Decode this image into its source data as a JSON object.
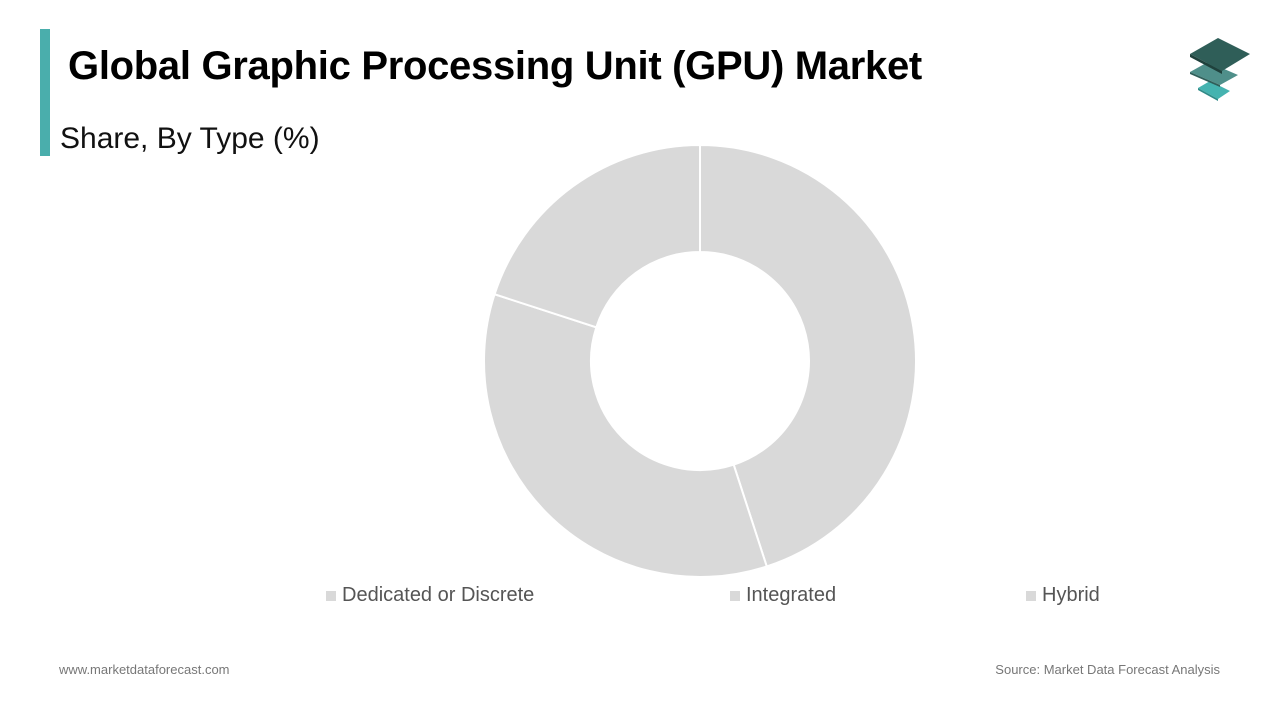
{
  "header": {
    "title": "Global Graphic Processing Unit (GPU) Market",
    "subtitle": "Share, By Type (%)",
    "accent_color": "#4aaeac",
    "logo_icon": "stacked-layers-icon"
  },
  "footer": {
    "website": "www.marketdataforecast.com",
    "source": "Source: Market Data Forecast Analysis"
  },
  "chart_data": {
    "type": "pie",
    "variant": "donut",
    "title": "Global Graphic Processing Unit (GPU) Market",
    "subtitle": "Share, By Type (%)",
    "categories": [
      "Dedicated or Discrete",
      "Integrated",
      "Hybrid"
    ],
    "values": [
      45,
      35,
      20
    ],
    "colors": [
      "#d9d9d9",
      "#d9d9d9",
      "#d9d9d9"
    ],
    "legend_position": "bottom",
    "data_labels": false
  },
  "legend": [
    {
      "label": "Dedicated or Discrete",
      "color": "#d9d9d9"
    },
    {
      "label": "Integrated",
      "color": "#d9d9d9"
    },
    {
      "label": "Hybrid",
      "color": "#d9d9d9"
    }
  ]
}
